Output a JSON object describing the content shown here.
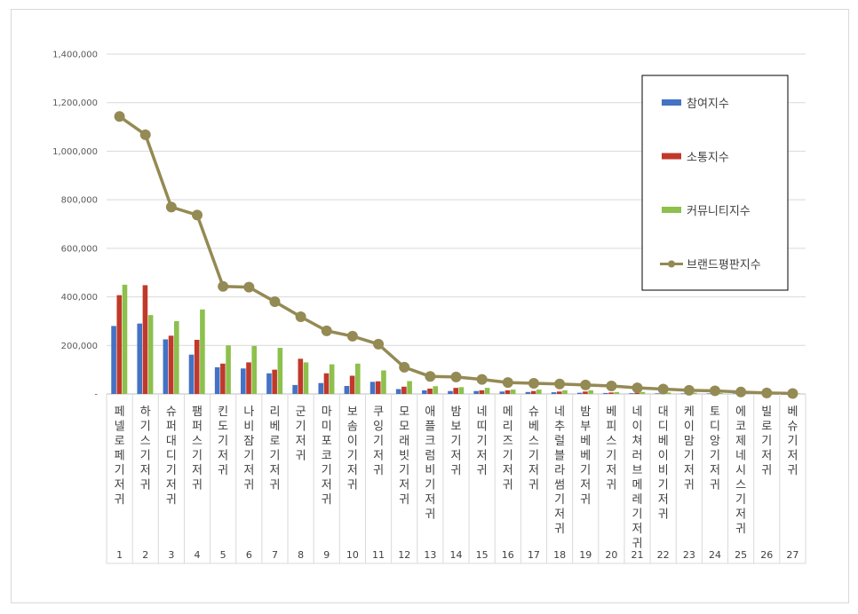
{
  "chart_data": {
    "type": "bar",
    "title": "",
    "xlabel": "",
    "ylabel": "",
    "ylim": [
      0,
      1400000
    ],
    "y_ticks": [
      "-",
      "200,000",
      "400,000",
      "600,000",
      "800,000",
      "1,000,000",
      "1,200,000",
      "1,400,000"
    ],
    "grid": true,
    "legend_position": "top-right",
    "ranks": [
      "1",
      "2",
      "3",
      "4",
      "5",
      "6",
      "7",
      "8",
      "9",
      "10",
      "11",
      "12",
      "13",
      "14",
      "15",
      "16",
      "17",
      "18",
      "19",
      "20",
      "21",
      "22",
      "23",
      "24",
      "25",
      "26",
      "27"
    ],
    "categories": [
      "페넬로페 기저귀",
      "하기스 기저귀",
      "슈퍼대디 기저귀",
      "팸퍼스 기저귀",
      "킨도 기저귀",
      "나비잠 기저귀",
      "리베로 기저귀",
      "군 기저귀",
      "마미포코 기저귀",
      "보솜이 기저귀",
      "쿠잉 기저귀",
      "모모래빗 기저귀",
      "애플크럼비 기저귀",
      "밤보 기저귀",
      "네띠 기저귀",
      "메리즈 기저귀",
      "슈베스 기저귀",
      "네추럴블라썸 기저귀",
      "밤부베베 기저귀",
      "베피스 기저귀",
      "네이쳐러브메레 기저귀",
      "대디베이비 기저귀",
      "케이맘 기저귀",
      "토디앙 기저귀",
      "에코제네시스 기저귀",
      "빌로 기저귀",
      "베슈 기저귀"
    ],
    "series": [
      {
        "name": "참여지수",
        "type": "bar",
        "color": "#4472C4",
        "values": [
          280000,
          290000,
          225000,
          162000,
          110000,
          105000,
          85000,
          37000,
          45000,
          33000,
          50000,
          20000,
          15000,
          12000,
          12000,
          10000,
          8000,
          7000,
          5000,
          4000,
          3000,
          2500,
          2000,
          1500,
          1000,
          800,
          500
        ]
      },
      {
        "name": "소통지수",
        "type": "bar",
        "color": "#C0392B",
        "values": [
          407000,
          448000,
          240000,
          223000,
          125000,
          130000,
          100000,
          145000,
          85000,
          75000,
          52000,
          30000,
          22000,
          25000,
          15000,
          15000,
          12000,
          10000,
          10000,
          6000,
          5000,
          3000,
          2500,
          2000,
          1500,
          1000,
          500
        ]
      },
      {
        "name": "커뮤니티지수",
        "type": "bar",
        "color": "#8DC04D",
        "values": [
          450000,
          325000,
          300000,
          348000,
          200000,
          198000,
          190000,
          130000,
          122000,
          125000,
          97000,
          53000,
          32000,
          28000,
          25000,
          18000,
          18000,
          15000,
          15000,
          8000,
          8000,
          6000,
          5000,
          4000,
          3000,
          2000,
          1000
        ]
      },
      {
        "name": "브랜드평판지수",
        "type": "line",
        "color": "#948A54",
        "values": [
          1143000,
          1068000,
          770000,
          737000,
          443000,
          440000,
          380000,
          318000,
          260000,
          238000,
          205000,
          110000,
          72000,
          70000,
          60000,
          47000,
          44000,
          41000,
          37000,
          33000,
          25000,
          20000,
          15000,
          13000,
          8000,
          4000,
          2000
        ]
      }
    ]
  }
}
